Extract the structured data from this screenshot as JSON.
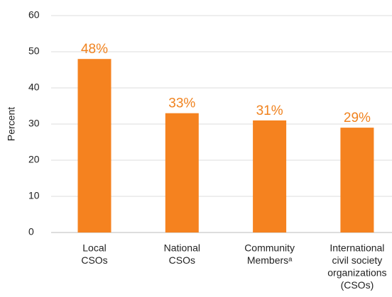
{
  "chart_data": {
    "type": "bar",
    "y_label": "Percent",
    "categories": [
      [
        "Local",
        "CSOs"
      ],
      [
        "National",
        "CSOs"
      ],
      [
        "Community",
        "Membersᵃ"
      ],
      [
        "International",
        "civil society",
        "organizations",
        "(CSOs)"
      ]
    ],
    "values": [
      48,
      33,
      31,
      29
    ],
    "value_labels": [
      "48%",
      "33%",
      "31%",
      "29%"
    ],
    "color": "#f5821f",
    "ylim": [
      0,
      60
    ],
    "yticks": [
      0,
      10,
      20,
      30,
      40,
      50,
      60
    ],
    "grid": true
  }
}
